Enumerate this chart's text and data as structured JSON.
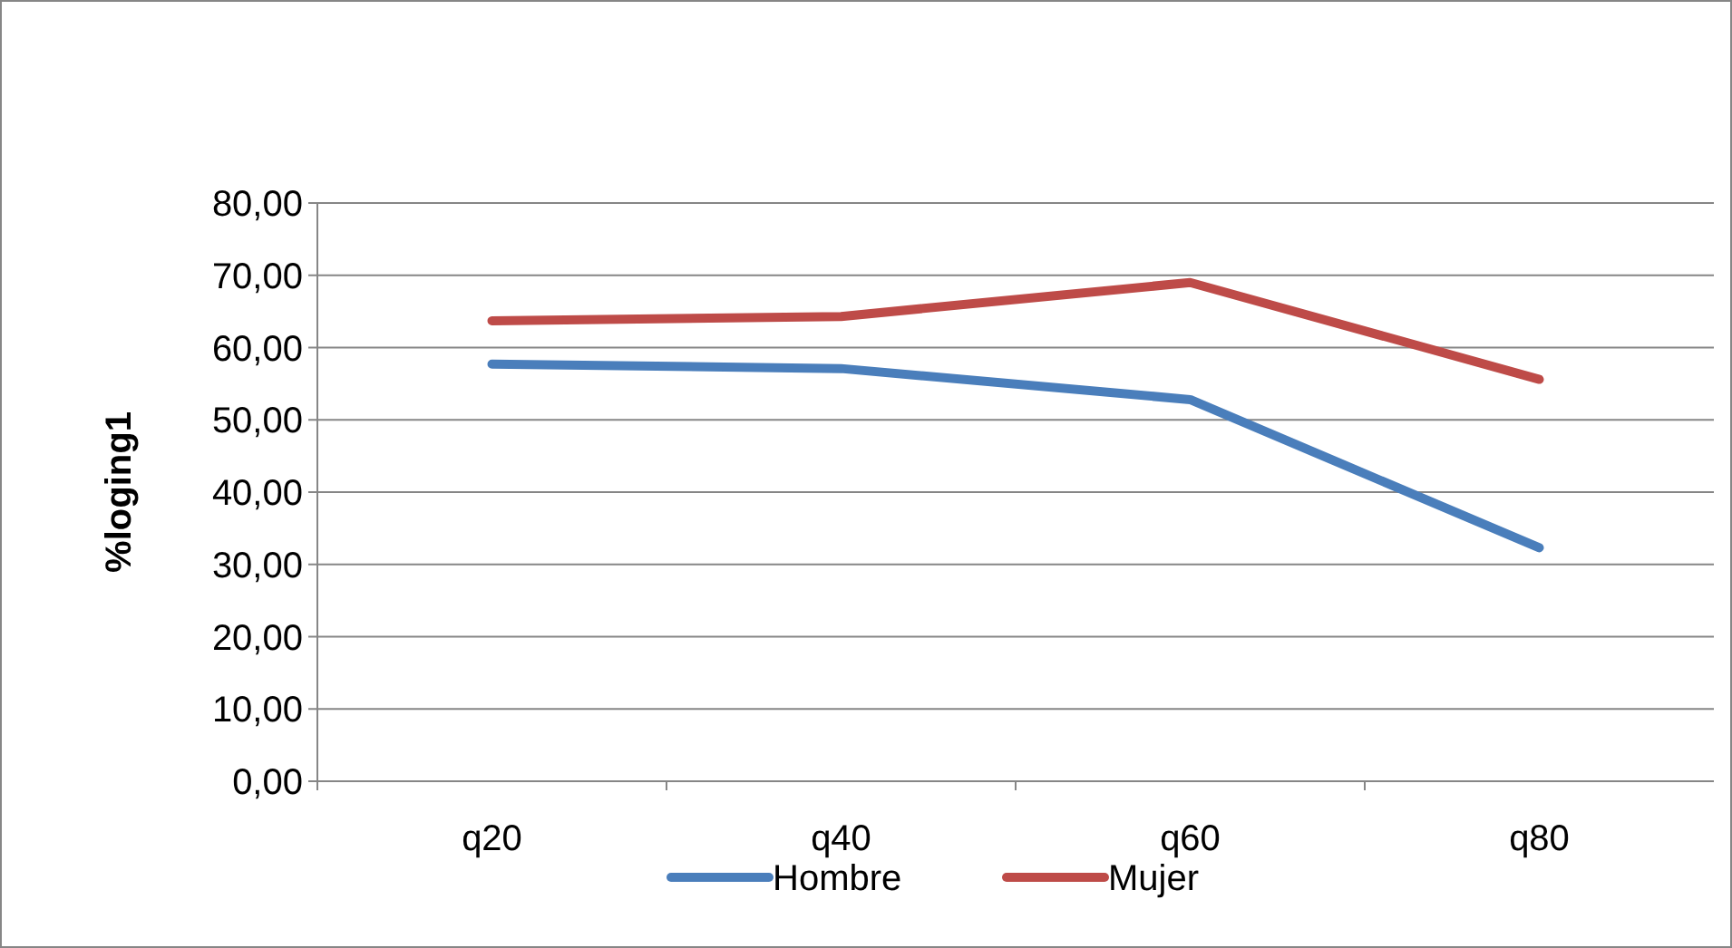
{
  "chart_data": {
    "type": "line",
    "ylabel": "%loging1",
    "categories": [
      "q20",
      "q40",
      "q60",
      "q80"
    ],
    "series": [
      {
        "name": "Hombre",
        "color": "#4a7ebb",
        "values": [
          57.7,
          57.1,
          52.8,
          32.3
        ]
      },
      {
        "name": "Mujer",
        "color": "#be4b48",
        "values": [
          63.7,
          64.3,
          69.0,
          55.6
        ]
      }
    ],
    "ylim": [
      0,
      80
    ],
    "yticks": [
      {
        "value": 0,
        "label": "0,00"
      },
      {
        "value": 10,
        "label": "10,00"
      },
      {
        "value": 20,
        "label": "20,00"
      },
      {
        "value": 30,
        "label": "30,00"
      },
      {
        "value": 40,
        "label": "40,00"
      },
      {
        "value": 50,
        "label": "50,00"
      },
      {
        "value": 60,
        "label": "60,00"
      },
      {
        "value": 70,
        "label": "70,00"
      },
      {
        "value": 80,
        "label": "80,00"
      }
    ],
    "grid": "y",
    "legend": "bottom",
    "marker": "none",
    "line_style": "solid"
  }
}
